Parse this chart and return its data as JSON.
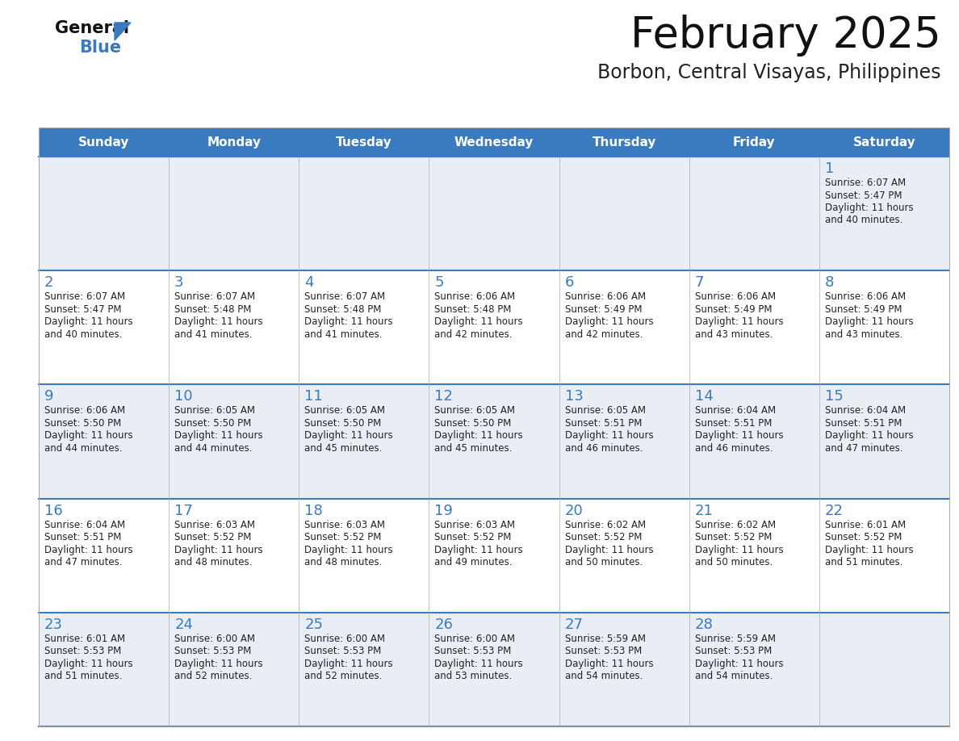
{
  "title": "February 2025",
  "subtitle": "Borbon, Central Visayas, Philippines",
  "header_bg": "#3a7abf",
  "header_text": "#ffffff",
  "cell_bg_odd": "#e8eef4",
  "cell_bg_even": "#ffffff",
  "day_names": [
    "Sunday",
    "Monday",
    "Tuesday",
    "Wednesday",
    "Thursday",
    "Friday",
    "Saturday"
  ],
  "days": [
    {
      "day": 1,
      "col": 6,
      "row": 0,
      "sunrise": "6:07 AM",
      "sunset": "5:47 PM",
      "daylight": "11 hours\nand 40 minutes."
    },
    {
      "day": 2,
      "col": 0,
      "row": 1,
      "sunrise": "6:07 AM",
      "sunset": "5:47 PM",
      "daylight": "11 hours\nand 40 minutes."
    },
    {
      "day": 3,
      "col": 1,
      "row": 1,
      "sunrise": "6:07 AM",
      "sunset": "5:48 PM",
      "daylight": "11 hours\nand 41 minutes."
    },
    {
      "day": 4,
      "col": 2,
      "row": 1,
      "sunrise": "6:07 AM",
      "sunset": "5:48 PM",
      "daylight": "11 hours\nand 41 minutes."
    },
    {
      "day": 5,
      "col": 3,
      "row": 1,
      "sunrise": "6:06 AM",
      "sunset": "5:48 PM",
      "daylight": "11 hours\nand 42 minutes."
    },
    {
      "day": 6,
      "col": 4,
      "row": 1,
      "sunrise": "6:06 AM",
      "sunset": "5:49 PM",
      "daylight": "11 hours\nand 42 minutes."
    },
    {
      "day": 7,
      "col": 5,
      "row": 1,
      "sunrise": "6:06 AM",
      "sunset": "5:49 PM",
      "daylight": "11 hours\nand 43 minutes."
    },
    {
      "day": 8,
      "col": 6,
      "row": 1,
      "sunrise": "6:06 AM",
      "sunset": "5:49 PM",
      "daylight": "11 hours\nand 43 minutes."
    },
    {
      "day": 9,
      "col": 0,
      "row": 2,
      "sunrise": "6:06 AM",
      "sunset": "5:50 PM",
      "daylight": "11 hours\nand 44 minutes."
    },
    {
      "day": 10,
      "col": 1,
      "row": 2,
      "sunrise": "6:05 AM",
      "sunset": "5:50 PM",
      "daylight": "11 hours\nand 44 minutes."
    },
    {
      "day": 11,
      "col": 2,
      "row": 2,
      "sunrise": "6:05 AM",
      "sunset": "5:50 PM",
      "daylight": "11 hours\nand 45 minutes."
    },
    {
      "day": 12,
      "col": 3,
      "row": 2,
      "sunrise": "6:05 AM",
      "sunset": "5:50 PM",
      "daylight": "11 hours\nand 45 minutes."
    },
    {
      "day": 13,
      "col": 4,
      "row": 2,
      "sunrise": "6:05 AM",
      "sunset": "5:51 PM",
      "daylight": "11 hours\nand 46 minutes."
    },
    {
      "day": 14,
      "col": 5,
      "row": 2,
      "sunrise": "6:04 AM",
      "sunset": "5:51 PM",
      "daylight": "11 hours\nand 46 minutes."
    },
    {
      "day": 15,
      "col": 6,
      "row": 2,
      "sunrise": "6:04 AM",
      "sunset": "5:51 PM",
      "daylight": "11 hours\nand 47 minutes."
    },
    {
      "day": 16,
      "col": 0,
      "row": 3,
      "sunrise": "6:04 AM",
      "sunset": "5:51 PM",
      "daylight": "11 hours\nand 47 minutes."
    },
    {
      "day": 17,
      "col": 1,
      "row": 3,
      "sunrise": "6:03 AM",
      "sunset": "5:52 PM",
      "daylight": "11 hours\nand 48 minutes."
    },
    {
      "day": 18,
      "col": 2,
      "row": 3,
      "sunrise": "6:03 AM",
      "sunset": "5:52 PM",
      "daylight": "11 hours\nand 48 minutes."
    },
    {
      "day": 19,
      "col": 3,
      "row": 3,
      "sunrise": "6:03 AM",
      "sunset": "5:52 PM",
      "daylight": "11 hours\nand 49 minutes."
    },
    {
      "day": 20,
      "col": 4,
      "row": 3,
      "sunrise": "6:02 AM",
      "sunset": "5:52 PM",
      "daylight": "11 hours\nand 50 minutes."
    },
    {
      "day": 21,
      "col": 5,
      "row": 3,
      "sunrise": "6:02 AM",
      "sunset": "5:52 PM",
      "daylight": "11 hours\nand 50 minutes."
    },
    {
      "day": 22,
      "col": 6,
      "row": 3,
      "sunrise": "6:01 AM",
      "sunset": "5:52 PM",
      "daylight": "11 hours\nand 51 minutes."
    },
    {
      "day": 23,
      "col": 0,
      "row": 4,
      "sunrise": "6:01 AM",
      "sunset": "5:53 PM",
      "daylight": "11 hours\nand 51 minutes."
    },
    {
      "day": 24,
      "col": 1,
      "row": 4,
      "sunrise": "6:00 AM",
      "sunset": "5:53 PM",
      "daylight": "11 hours\nand 52 minutes."
    },
    {
      "day": 25,
      "col": 2,
      "row": 4,
      "sunrise": "6:00 AM",
      "sunset": "5:53 PM",
      "daylight": "11 hours\nand 52 minutes."
    },
    {
      "day": 26,
      "col": 3,
      "row": 4,
      "sunrise": "6:00 AM",
      "sunset": "5:53 PM",
      "daylight": "11 hours\nand 53 minutes."
    },
    {
      "day": 27,
      "col": 4,
      "row": 4,
      "sunrise": "5:59 AM",
      "sunset": "5:53 PM",
      "daylight": "11 hours\nand 54 minutes."
    },
    {
      "day": 28,
      "col": 5,
      "row": 4,
      "sunrise": "5:59 AM",
      "sunset": "5:53 PM",
      "daylight": "11 hours\nand 54 minutes."
    }
  ],
  "num_rows": 5,
  "num_cols": 7,
  "line_color": "#3a7abf",
  "border_color": "#aaaaaa",
  "day_num_color": "#3a7abf",
  "info_text_color": "#222222",
  "bg_color": "#ffffff",
  "title_color": "#111111",
  "subtitle_color": "#222222"
}
